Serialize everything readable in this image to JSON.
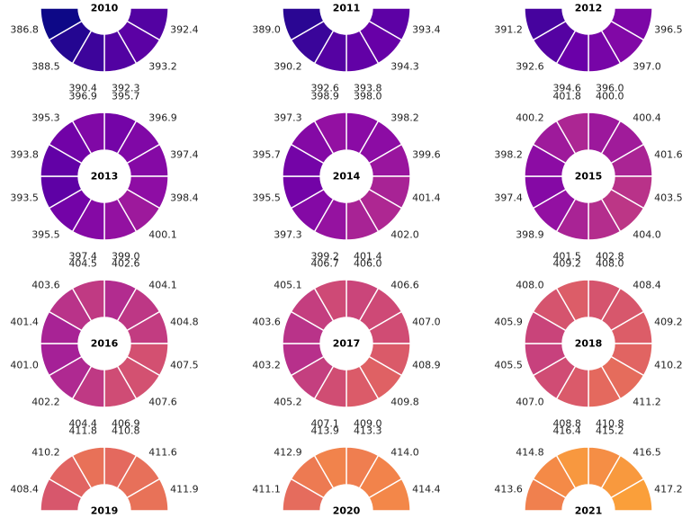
{
  "chart_data": {
    "type": "donut-grid",
    "colormap": "plasma",
    "color_range": [
      386.8,
      417.2
    ],
    "charts": [
      {
        "year": "2010",
        "values": [
          null,
          null,
          null,
          392.4,
          393.2,
          392.3,
          390.4,
          388.5,
          386.8,
          null,
          null,
          null
        ]
      },
      {
        "year": "2011",
        "values": [
          null,
          null,
          null,
          393.4,
          394.3,
          393.8,
          392.6,
          390.2,
          389.0,
          null,
          null,
          null
        ]
      },
      {
        "year": "2012",
        "values": [
          null,
          null,
          null,
          396.5,
          397.0,
          396.0,
          394.6,
          392.6,
          391.2,
          null,
          null,
          null
        ]
      },
      {
        "year": "2013",
        "values": [
          395.7,
          396.9,
          397.4,
          398.4,
          400.1,
          399.0,
          397.4,
          395.5,
          393.5,
          393.8,
          395.3,
          396.9
        ]
      },
      {
        "year": "2014",
        "values": [
          398.0,
          398.2,
          399.6,
          401.4,
          402.0,
          401.4,
          399.2,
          397.3,
          395.5,
          395.7,
          397.3,
          398.9
        ]
      },
      {
        "year": "2015",
        "values": [
          400.0,
          400.4,
          401.6,
          403.5,
          404.0,
          402.8,
          401.5,
          398.9,
          397.4,
          398.2,
          400.2,
          401.8
        ]
      },
      {
        "year": "2016",
        "values": [
          402.6,
          404.1,
          404.8,
          407.5,
          407.6,
          406.9,
          404.4,
          402.2,
          401.0,
          401.4,
          403.6,
          404.5
        ]
      },
      {
        "year": "2017",
        "values": [
          406.0,
          406.6,
          407.0,
          408.9,
          409.8,
          409.0,
          407.1,
          405.2,
          403.2,
          403.6,
          405.1,
          406.7
        ]
      },
      {
        "year": "2018",
        "values": [
          408.0,
          408.4,
          409.2,
          410.2,
          411.2,
          410.8,
          408.8,
          407.0,
          405.5,
          405.9,
          408.0,
          409.2
        ]
      },
      {
        "year": "2019",
        "values": [
          410.8,
          411.6,
          411.9,
          null,
          null,
          null,
          null,
          null,
          null,
          408.4,
          410.2,
          411.8
        ]
      },
      {
        "year": "2020",
        "values": [
          413.3,
          414.0,
          414.4,
          null,
          null,
          null,
          null,
          null,
          null,
          411.1,
          412.9,
          413.9
        ]
      },
      {
        "year": "2021",
        "values": [
          415.2,
          416.5,
          417.2,
          null,
          null,
          null,
          null,
          null,
          null,
          413.6,
          414.8,
          416.4
        ]
      }
    ]
  }
}
